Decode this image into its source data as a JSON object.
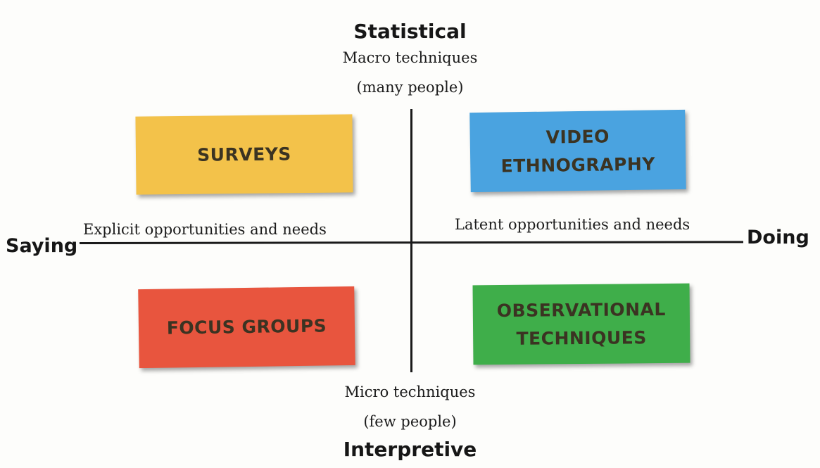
{
  "axes": {
    "top": {
      "title": "Statistical",
      "line1": "Macro techniques",
      "line2": "(many people)"
    },
    "bottom": {
      "line1": "Micro techniques",
      "line2": "(few people)",
      "title": "Interpretive"
    },
    "left": {
      "title": "Saying",
      "note": "Explicit opportunities and needs"
    },
    "right": {
      "title": "Doing",
      "note": "Latent opportunities and needs"
    }
  },
  "quadrants": [
    {
      "id": "top-left",
      "label": "SURVEYS",
      "color": "#f3c24a"
    },
    {
      "id": "top-right",
      "label": "VIDEO\nETHNOGRAPHY",
      "color": "#4aa3e0"
    },
    {
      "id": "bottom-left",
      "label": "FOCUS GROUPS",
      "color": "#e8553e"
    },
    {
      "id": "bottom-right",
      "label": "OBSERVATIONAL\nTECHNIQUES",
      "color": "#3fae4a"
    }
  ]
}
